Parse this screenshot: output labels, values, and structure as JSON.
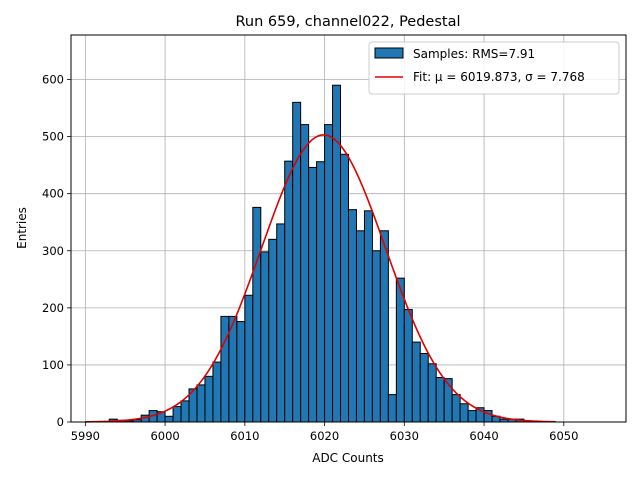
{
  "chart_data": {
    "type": "bar",
    "title": "Run 659, channel022, Pedestal",
    "xlabel": "ADC Counts",
    "ylabel": "Entries",
    "xlim": [
      5988.2,
      6057.8
    ],
    "ylim": [
      0,
      678
    ],
    "xticks": [
      5990,
      6000,
      6010,
      6020,
      6030,
      6040,
      6050
    ],
    "yticks": [
      0,
      100,
      200,
      300,
      400,
      500,
      600
    ],
    "grid": true,
    "legend_position": "top-right",
    "histogram": {
      "name": "Samples: RMS=7.91",
      "color": "#1f77b4",
      "bin_width": 1,
      "x": [
        5993,
        5994,
        5995,
        5996,
        5997,
        5998,
        5999,
        6000,
        6001,
        6002,
        6003,
        6004,
        6005,
        6006,
        6007,
        6008,
        6009,
        6010,
        6011,
        6012,
        6013,
        6014,
        6015,
        6016,
        6017,
        6018,
        6019,
        6020,
        6021,
        6022,
        6023,
        6024,
        6025,
        6026,
        6027,
        6028,
        6029,
        6030,
        6031,
        6032,
        6033,
        6034,
        6035,
        6036,
        6037,
        6038,
        6039,
        6040,
        6041,
        6042,
        6043,
        6044,
        6045,
        6046,
        6047,
        6048
      ],
      "values": [
        5,
        3,
        2,
        4,
        12,
        20,
        18,
        10,
        27,
        37,
        58,
        65,
        80,
        105,
        185,
        185,
        176,
        222,
        376,
        298,
        320,
        347,
        457,
        560,
        521,
        446,
        456,
        521,
        590,
        469,
        372,
        335,
        370,
        300,
        335,
        48,
        252,
        197,
        140,
        120,
        102,
        78,
        76,
        48,
        32,
        20,
        25,
        20,
        10,
        5,
        5,
        5,
        2,
        1,
        0,
        0
      ]
    },
    "fit": {
      "name": "Fit: μ = 6019.873, σ = 7.768",
      "color": "#e00000",
      "mu": 6019.873,
      "sigma": 7.768,
      "amplitude": 503,
      "x_range": [
        5990,
        6049
      ]
    }
  }
}
